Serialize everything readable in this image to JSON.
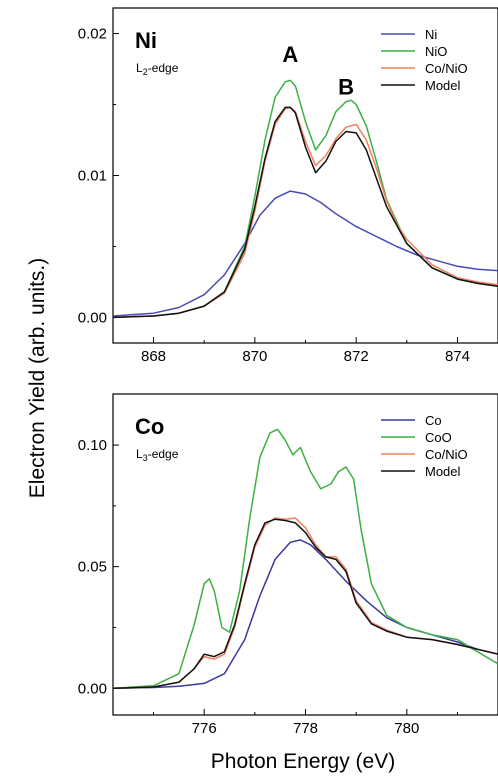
{
  "figure": {
    "ylabel": "Electron Yield (arb. units.)",
    "xlabel": "Photon Energy (eV)"
  },
  "chart_data": [
    {
      "type": "line",
      "element_label": "Ni",
      "edge_label": {
        "main": "L",
        "sub": "2",
        "rest": "-edge"
      },
      "peak_labels": [
        {
          "text": "A",
          "x": 870.7,
          "y": 0.018
        },
        {
          "text": "B",
          "x": 871.8,
          "y": 0.0157
        }
      ],
      "xlim": [
        867.2,
        874.8
      ],
      "ylim": [
        -0.0018,
        0.0218
      ],
      "xticks": [
        868,
        870,
        872,
        874
      ],
      "xtick_labels": [
        "868",
        "870",
        "872",
        "874"
      ],
      "yticks": [
        0.0,
        0.01,
        0.02
      ],
      "ytick_labels": [
        "0.00",
        "0.01",
        "0.02"
      ],
      "legend_position": "top-right",
      "series": [
        {
          "name": "Ni",
          "color": "#4a4ab0",
          "x": [
            867.2,
            868.0,
            868.5,
            869.0,
            869.4,
            869.8,
            870.1,
            870.4,
            870.7,
            871.0,
            871.3,
            871.6,
            872.0,
            872.4,
            872.8,
            873.2,
            873.6,
            874.0,
            874.4,
            874.8
          ],
          "y": [
            0.0001,
            0.0003,
            0.0007,
            0.0016,
            0.003,
            0.0052,
            0.0072,
            0.0084,
            0.0089,
            0.0087,
            0.0081,
            0.0073,
            0.0064,
            0.0057,
            0.005,
            0.0044,
            0.004,
            0.0036,
            0.0034,
            0.0033
          ]
        },
        {
          "name": "NiO",
          "color": "#3cb043",
          "x": [
            867.2,
            868.0,
            868.5,
            869.0,
            869.4,
            869.8,
            870.0,
            870.2,
            870.4,
            870.6,
            870.7,
            870.8,
            871.0,
            871.2,
            871.4,
            871.6,
            871.8,
            871.9,
            872.0,
            872.2,
            872.4,
            872.6,
            873.0,
            873.5,
            874.0,
            874.4,
            874.8
          ],
          "y": [
            0.0,
            0.0001,
            0.0003,
            0.0008,
            0.0018,
            0.005,
            0.0085,
            0.0125,
            0.0155,
            0.0166,
            0.0167,
            0.0163,
            0.0138,
            0.0118,
            0.0128,
            0.0145,
            0.0152,
            0.0153,
            0.015,
            0.0135,
            0.011,
            0.0083,
            0.0052,
            0.0035,
            0.0027,
            0.0024,
            0.0022
          ]
        },
        {
          "name": "Co/NiO",
          "color": "#f08060",
          "x": [
            867.2,
            868.0,
            868.5,
            869.0,
            869.4,
            869.8,
            870.0,
            870.2,
            870.4,
            870.6,
            870.7,
            870.8,
            871.0,
            871.2,
            871.4,
            871.6,
            871.8,
            872.0,
            872.2,
            872.4,
            872.6,
            872.8,
            873.0,
            873.5,
            874.0,
            874.4,
            874.8
          ],
          "y": [
            0.0,
            0.0001,
            0.0003,
            0.0008,
            0.0017,
            0.0045,
            0.0075,
            0.011,
            0.0136,
            0.0147,
            0.0148,
            0.0145,
            0.0124,
            0.0107,
            0.0114,
            0.0126,
            0.0134,
            0.0136,
            0.0125,
            0.0105,
            0.0082,
            0.0066,
            0.0055,
            0.0037,
            0.0028,
            0.0025,
            0.0023
          ]
        },
        {
          "name": "Model",
          "color": "#111111",
          "x": [
            867.2,
            868.0,
            868.5,
            869.0,
            869.4,
            869.8,
            870.0,
            870.2,
            870.4,
            870.6,
            870.7,
            870.8,
            871.0,
            871.2,
            871.4,
            871.6,
            871.8,
            872.0,
            872.2,
            872.4,
            872.6,
            873.0,
            873.5,
            874.0,
            874.4,
            874.8
          ],
          "y": [
            0.0,
            0.0001,
            0.0003,
            0.0008,
            0.0018,
            0.0048,
            0.0078,
            0.0112,
            0.0138,
            0.0148,
            0.0148,
            0.0144,
            0.012,
            0.0102,
            0.011,
            0.0124,
            0.0131,
            0.013,
            0.0118,
            0.0098,
            0.0078,
            0.0052,
            0.0035,
            0.0027,
            0.0024,
            0.0022
          ]
        }
      ]
    },
    {
      "type": "line",
      "element_label": "Co",
      "edge_label": {
        "main": "L",
        "sub": "3",
        "rest": "-edge"
      },
      "xlim": [
        774.2,
        781.8
      ],
      "ylim": [
        -0.011,
        0.121
      ],
      "xticks": [
        776,
        778,
        780
      ],
      "xtick_labels": [
        "776",
        "778",
        "780"
      ],
      "yticks": [
        0.0,
        0.05,
        0.1
      ],
      "ytick_labels": [
        "0.00",
        "0.05",
        "0.10"
      ],
      "legend_position": "top-right",
      "series": [
        {
          "name": "Co",
          "color": "#3a3aa0",
          "x": [
            774.2,
            775.0,
            775.5,
            776.0,
            776.4,
            776.8,
            777.1,
            777.4,
            777.7,
            777.9,
            778.1,
            778.4,
            778.8,
            779.2,
            779.6,
            780.0,
            780.5,
            781.0,
            781.4,
            781.8
          ],
          "y": [
            0.0,
            0.0003,
            0.0008,
            0.002,
            0.006,
            0.02,
            0.038,
            0.053,
            0.06,
            0.061,
            0.059,
            0.053,
            0.044,
            0.036,
            0.029,
            0.025,
            0.022,
            0.019,
            0.016,
            0.014
          ]
        },
        {
          "name": "CoO",
          "color": "#3cb043",
          "x": [
            774.2,
            775.0,
            775.5,
            775.8,
            776.0,
            776.1,
            776.2,
            776.35,
            776.5,
            776.7,
            776.9,
            777.1,
            777.3,
            777.45,
            777.6,
            777.75,
            777.9,
            778.1,
            778.3,
            778.5,
            778.65,
            778.8,
            778.95,
            779.1,
            779.3,
            779.6,
            780.0,
            780.5,
            781.0,
            781.4,
            781.8
          ],
          "y": [
            0.0,
            0.001,
            0.006,
            0.026,
            0.043,
            0.045,
            0.04,
            0.025,
            0.023,
            0.04,
            0.07,
            0.095,
            0.105,
            0.1065,
            0.102,
            0.096,
            0.099,
            0.089,
            0.082,
            0.084,
            0.089,
            0.091,
            0.086,
            0.065,
            0.043,
            0.03,
            0.025,
            0.022,
            0.02,
            0.015,
            0.01
          ]
        },
        {
          "name": "Co/NiO",
          "color": "#f08060",
          "x": [
            774.2,
            775.0,
            775.5,
            775.8,
            776.0,
            776.2,
            776.4,
            776.6,
            776.8,
            777.0,
            777.2,
            777.4,
            777.6,
            777.8,
            778.0,
            778.2,
            778.4,
            778.6,
            778.8,
            779.0,
            779.3,
            779.6,
            780.0,
            780.5,
            781.0,
            781.4,
            781.8
          ],
          "y": [
            0.0,
            0.0005,
            0.0025,
            0.008,
            0.013,
            0.012,
            0.014,
            0.025,
            0.042,
            0.058,
            0.067,
            0.07,
            0.0695,
            0.07,
            0.066,
            0.059,
            0.054,
            0.054,
            0.049,
            0.036,
            0.027,
            0.024,
            0.021,
            0.02,
            0.018,
            0.016,
            0.014
          ]
        },
        {
          "name": "Model",
          "color": "#111111",
          "x": [
            774.2,
            775.0,
            775.5,
            775.8,
            776.0,
            776.2,
            776.4,
            776.6,
            776.8,
            777.0,
            777.2,
            777.4,
            777.6,
            777.8,
            778.0,
            778.2,
            778.4,
            778.6,
            778.8,
            779.0,
            779.3,
            779.6,
            780.0,
            780.5,
            781.0,
            781.4,
            781.8
          ],
          "y": [
            0.0,
            0.0005,
            0.0025,
            0.008,
            0.014,
            0.013,
            0.015,
            0.026,
            0.043,
            0.059,
            0.068,
            0.0695,
            0.069,
            0.068,
            0.064,
            0.058,
            0.054,
            0.053,
            0.048,
            0.035,
            0.0265,
            0.0235,
            0.021,
            0.02,
            0.018,
            0.016,
            0.014
          ]
        }
      ]
    }
  ]
}
